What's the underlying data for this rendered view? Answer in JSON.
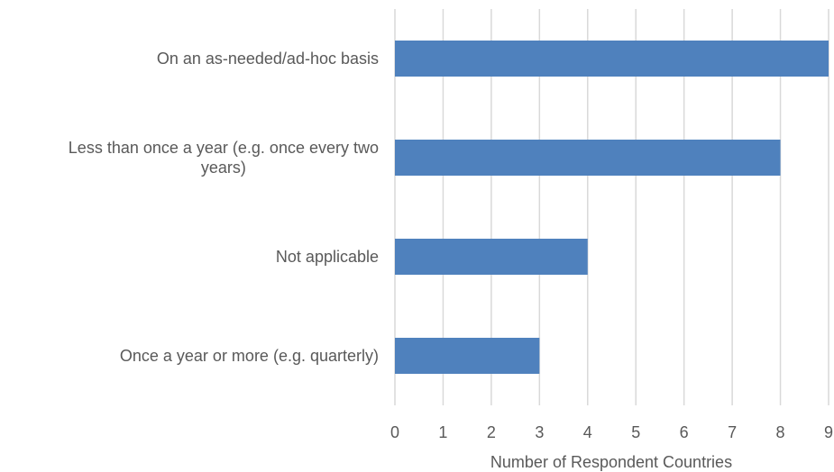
{
  "chart_data": {
    "type": "bar",
    "orientation": "horizontal",
    "categories": [
      [
        "On an as-needed/ad-hoc basis"
      ],
      [
        "Less than once a year (e.g. once every two",
        "years)"
      ],
      [
        "Not applicable"
      ],
      [
        "Once a year or more (e.g. quarterly)"
      ]
    ],
    "values": [
      9,
      8,
      4,
      3
    ],
    "xlabel": "Number of Respondent Countries",
    "ylabel": "",
    "xlim": [
      0,
      9
    ],
    "ticks": [
      "0",
      "1",
      "2",
      "3",
      "4",
      "5",
      "6",
      "7",
      "8",
      "9"
    ],
    "grid": true,
    "bar_color": "#4f81bd",
    "grid_color": "#d9d9d9",
    "text_color": "#595959"
  }
}
